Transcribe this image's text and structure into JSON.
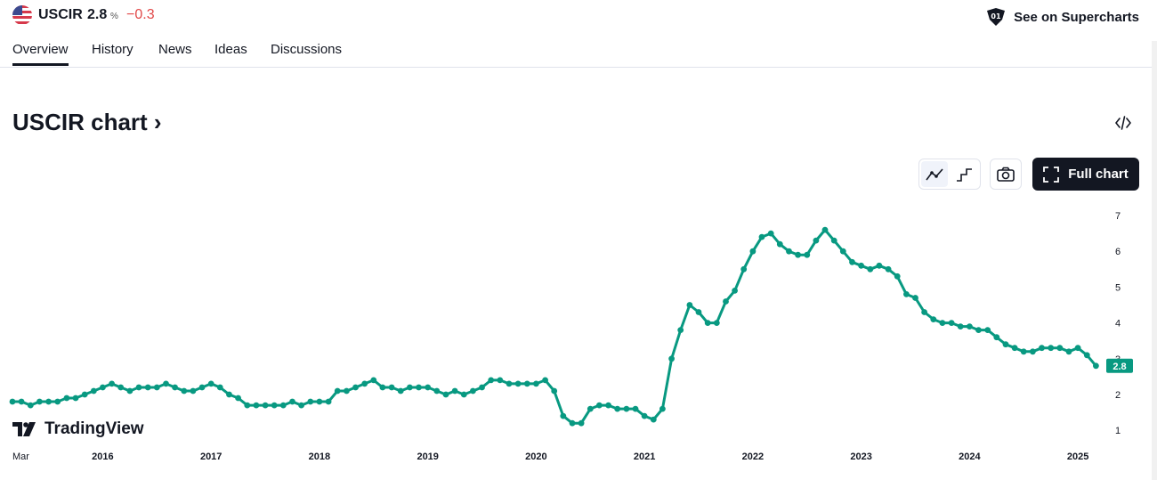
{
  "header": {
    "symbol": "USCIR",
    "price": "2.8",
    "price_unit": "%",
    "change": "−0.3",
    "supercharts_label": "See on Supercharts"
  },
  "tabs": [
    "Overview",
    "History",
    "News",
    "Ideas",
    "Discussions"
  ],
  "section_title": "USCIR chart",
  "full_chart_label": "Full chart",
  "brand": "TradingView",
  "colors": {
    "line": "#089981",
    "negative": "#e14848",
    "text": "#131722"
  },
  "icons": [
    "us-flag-icon",
    "supercharts-icon",
    "embed-code-icon",
    "line-chart-icon",
    "step-chart-icon",
    "camera-icon",
    "fullscreen-icon",
    "tradingview-logo-icon",
    "chevron-right-icon"
  ],
  "chart_data": {
    "type": "line",
    "title": "",
    "xlabel": "",
    "ylabel": "",
    "ylim": [
      0.5,
      7.5
    ],
    "y_ticks": [
      "1",
      "2",
      "3",
      "4",
      "5",
      "6",
      "7"
    ],
    "x_ticks": [
      "Mar",
      "2016",
      "2017",
      "2018",
      "2019",
      "2020",
      "2021",
      "2022",
      "2023",
      "2024",
      "2025"
    ],
    "x_range": [
      "2015-03",
      "2025-04"
    ],
    "last_value_label": "2.8",
    "series": [
      {
        "x": [
          "2015-03",
          "2015-04",
          "2015-05",
          "2015-06",
          "2015-07",
          "2015-08",
          "2015-09",
          "2015-10",
          "2015-11",
          "2015-12",
          "2016-01",
          "2016-02",
          "2016-03",
          "2016-04",
          "2016-05",
          "2016-06",
          "2016-07",
          "2016-08",
          "2016-09",
          "2016-10",
          "2016-11",
          "2016-12",
          "2017-01",
          "2017-02",
          "2017-03",
          "2017-04",
          "2017-05",
          "2017-06",
          "2017-07",
          "2017-08",
          "2017-09",
          "2017-10",
          "2017-11",
          "2017-12",
          "2018-01",
          "2018-02",
          "2018-03",
          "2018-04",
          "2018-05",
          "2018-06",
          "2018-07",
          "2018-08",
          "2018-09",
          "2018-10",
          "2018-11",
          "2018-12",
          "2019-01",
          "2019-02",
          "2019-03",
          "2019-04",
          "2019-05",
          "2019-06",
          "2019-07",
          "2019-08",
          "2019-09",
          "2019-10",
          "2019-11",
          "2019-12",
          "2020-01",
          "2020-02",
          "2020-03",
          "2020-04",
          "2020-05",
          "2020-06",
          "2020-07",
          "2020-08",
          "2020-09",
          "2020-10",
          "2020-11",
          "2020-12",
          "2021-01",
          "2021-02",
          "2021-03",
          "2021-04",
          "2021-05",
          "2021-06",
          "2021-07",
          "2021-08",
          "2021-09",
          "2021-10",
          "2021-11",
          "2021-12",
          "2022-01",
          "2022-02",
          "2022-03",
          "2022-04",
          "2022-05",
          "2022-06",
          "2022-07",
          "2022-08",
          "2022-09",
          "2022-10",
          "2022-11",
          "2022-12",
          "2023-01",
          "2023-02",
          "2023-03",
          "2023-04",
          "2023-05",
          "2023-06",
          "2023-07",
          "2023-08",
          "2023-09",
          "2023-10",
          "2023-11",
          "2023-12",
          "2024-01",
          "2024-02",
          "2024-03",
          "2024-04",
          "2024-05",
          "2024-06",
          "2024-07",
          "2024-08",
          "2024-09",
          "2024-10",
          "2024-11",
          "2024-12",
          "2025-01",
          "2025-02",
          "2025-03"
        ],
        "values": [
          1.8,
          1.8,
          1.7,
          1.8,
          1.8,
          1.8,
          1.9,
          1.9,
          2.0,
          2.1,
          2.2,
          2.3,
          2.2,
          2.1,
          2.2,
          2.2,
          2.2,
          2.3,
          2.2,
          2.1,
          2.1,
          2.2,
          2.3,
          2.2,
          2.0,
          1.9,
          1.7,
          1.7,
          1.7,
          1.7,
          1.7,
          1.8,
          1.7,
          1.8,
          1.8,
          1.8,
          2.1,
          2.1,
          2.2,
          2.3,
          2.4,
          2.2,
          2.2,
          2.1,
          2.2,
          2.2,
          2.2,
          2.1,
          2.0,
          2.1,
          2.0,
          2.1,
          2.2,
          2.4,
          2.4,
          2.3,
          2.3,
          2.3,
          2.3,
          2.4,
          2.1,
          1.4,
          1.2,
          1.2,
          1.6,
          1.7,
          1.7,
          1.6,
          1.6,
          1.6,
          1.4,
          1.3,
          1.6,
          3.0,
          3.8,
          4.5,
          4.3,
          4.0,
          4.0,
          4.6,
          4.9,
          5.5,
          6.0,
          6.4,
          6.5,
          6.2,
          6.0,
          5.9,
          5.9,
          6.3,
          6.6,
          6.3,
          6.0,
          5.7,
          5.6,
          5.5,
          5.6,
          5.5,
          5.3,
          4.8,
          4.7,
          4.3,
          4.1,
          4.0,
          4.0,
          3.9,
          3.9,
          3.8,
          3.8,
          3.6,
          3.4,
          3.3,
          3.2,
          3.2,
          3.3,
          3.3,
          3.3,
          3.2,
          3.3,
          3.1,
          2.8
        ]
      }
    ]
  }
}
